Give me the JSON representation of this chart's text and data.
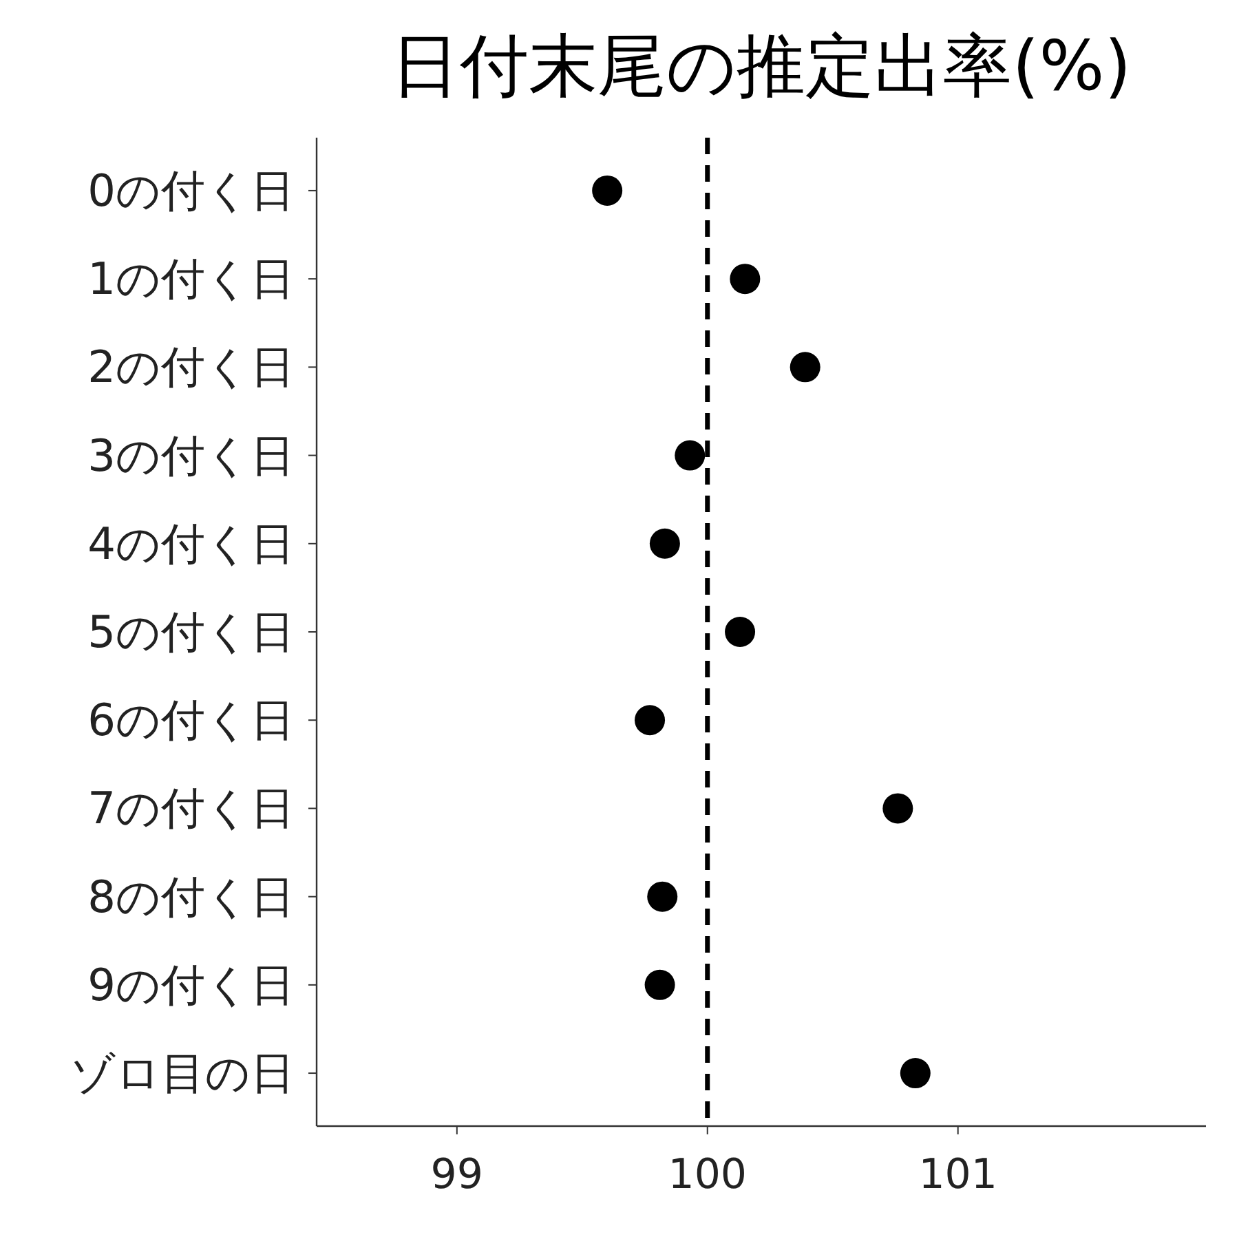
{
  "chart_data": {
    "type": "scatter",
    "orientation": "horizontal",
    "title": "日付末尾の推定出率(%)",
    "categories": [
      "0の付く日",
      "1の付く日",
      "2の付く日",
      "3の付く日",
      "4の付く日",
      "5の付く日",
      "6の付く日",
      "7の付く日",
      "8の付く日",
      "9の付く日",
      "ゾロ目の日"
    ],
    "values": [
      99.6,
      100.15,
      100.39,
      99.93,
      99.83,
      100.13,
      99.77,
      100.76,
      99.82,
      99.81,
      100.83
    ],
    "color": "#000000",
    "marker": "circle",
    "xlim": [
      98.44,
      101.99
    ],
    "xticks": [
      99,
      100,
      101
    ],
    "ref_lines": [
      {
        "axis": "x",
        "value": 100,
        "line_style": "dashed",
        "color": "#000000"
      }
    ],
    "grid": false
  }
}
